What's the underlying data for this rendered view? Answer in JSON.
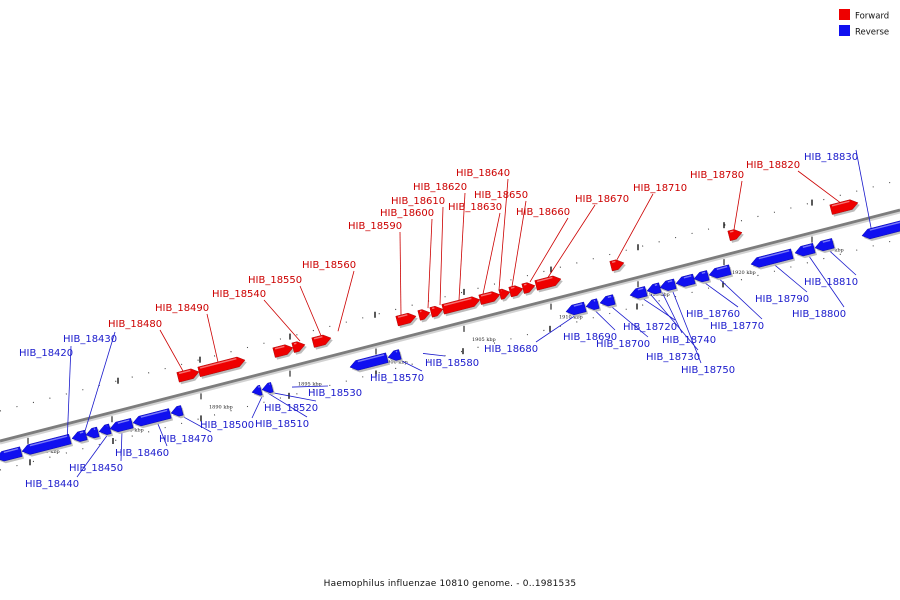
{
  "legend": {
    "forward": {
      "label": "Forward",
      "color": "#ee0000"
    },
    "reverse": {
      "label": "Reverse",
      "color": "#1010f0"
    }
  },
  "caption": "Haemophilus influenzae 10810 genome. - 0..1981535",
  "axis": {
    "ticks": [
      {
        "label": "1880 kbp"
      },
      {
        "label": "1885 kbp"
      },
      {
        "label": "1890 kbp"
      },
      {
        "label": "1895 kbp"
      },
      {
        "label": "1900 kbp"
      },
      {
        "label": "1905 kbp"
      },
      {
        "label": "1910 kbp"
      },
      {
        "label": "1915 kbp"
      },
      {
        "label": "1920 kbp"
      },
      {
        "label": "1925 kbp"
      }
    ]
  },
  "genes": [
    {
      "name": "HIB_18420",
      "strand": "reverse"
    },
    {
      "name": "HIB_18430",
      "strand": "reverse"
    },
    {
      "name": "HIB_18440",
      "strand": "reverse"
    },
    {
      "name": "HIB_18450",
      "strand": "reverse"
    },
    {
      "name": "HIB_18460",
      "strand": "reverse"
    },
    {
      "name": "HIB_18470",
      "strand": "reverse"
    },
    {
      "name": "HIB_18480",
      "strand": "forward"
    },
    {
      "name": "HIB_18490",
      "strand": "forward"
    },
    {
      "name": "HIB_18500",
      "strand": "reverse"
    },
    {
      "name": "HIB_18510",
      "strand": "reverse"
    },
    {
      "name": "HIB_18520",
      "strand": "reverse"
    },
    {
      "name": "HIB_18530",
      "strand": "reverse"
    },
    {
      "name": "HIB_18540",
      "strand": "forward"
    },
    {
      "name": "HIB_18550",
      "strand": "forward"
    },
    {
      "name": "HIB_18560",
      "strand": "forward"
    },
    {
      "name": "HIB_18570",
      "strand": "reverse"
    },
    {
      "name": "HIB_18580",
      "strand": "reverse"
    },
    {
      "name": "HIB_18590",
      "strand": "forward"
    },
    {
      "name": "HIB_18600",
      "strand": "forward"
    },
    {
      "name": "HIB_18610",
      "strand": "forward"
    },
    {
      "name": "HIB_18620",
      "strand": "forward"
    },
    {
      "name": "HIB_18630",
      "strand": "forward"
    },
    {
      "name": "HIB_18640",
      "strand": "forward"
    },
    {
      "name": "HIB_18650",
      "strand": "forward"
    },
    {
      "name": "HIB_18660",
      "strand": "forward"
    },
    {
      "name": "HIB_18670",
      "strand": "forward"
    },
    {
      "name": "HIB_18680",
      "strand": "reverse"
    },
    {
      "name": "HIB_18690",
      "strand": "reverse"
    },
    {
      "name": "HIB_18700",
      "strand": "reverse"
    },
    {
      "name": "HIB_18710",
      "strand": "forward"
    },
    {
      "name": "HIB_18720",
      "strand": "reverse"
    },
    {
      "name": "HIB_18730",
      "strand": "reverse"
    },
    {
      "name": "HIB_18740",
      "strand": "reverse"
    },
    {
      "name": "HIB_18750",
      "strand": "reverse"
    },
    {
      "name": "HIB_18760",
      "strand": "reverse"
    },
    {
      "name": "HIB_18770",
      "strand": "reverse"
    },
    {
      "name": "HIB_18780",
      "strand": "forward"
    },
    {
      "name": "HIB_18790",
      "strand": "reverse"
    },
    {
      "name": "HIB_18800",
      "strand": "reverse"
    },
    {
      "name": "HIB_18810",
      "strand": "reverse"
    },
    {
      "name": "HIB_18820",
      "strand": "forward"
    },
    {
      "name": "HIB_18830",
      "strand": "reverse"
    }
  ]
}
